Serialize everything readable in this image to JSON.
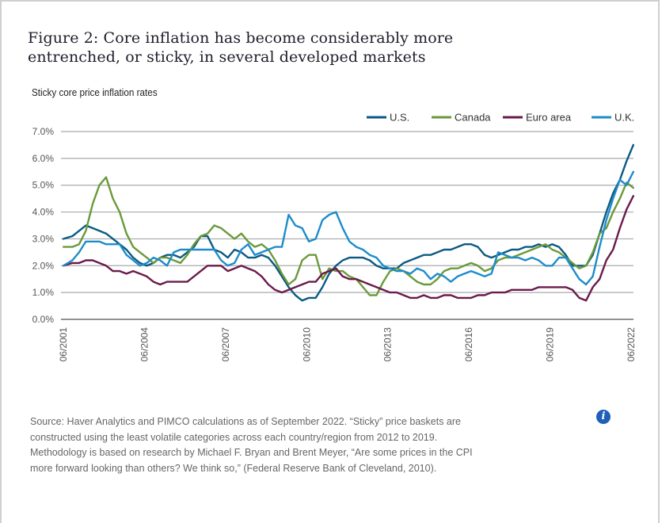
{
  "figure": {
    "title": "Figure 2: Core inflation has become considerably more entrenched, or sticky, in several developed markets",
    "subtitle": "Sticky core price inflation rates",
    "source": "Source: Haver Analytics and PIMCO calculations as of September 2022. “Sticky” price baskets are constructed using the least volatile categories across each country/region from 2012 to 2019. Methodology is based on research by Michael F. Bryan and Brent Meyer, “Are some prices in the CPI more forward looking than others? We think so,” (Federal Reserve Bank of Cleveland, 2010).",
    "info_icon": "info-icon"
  },
  "chart_data": {
    "type": "line",
    "title": "Sticky core price inflation rates",
    "xlabel": "",
    "ylabel": "",
    "ylim": [
      0,
      7
    ],
    "xlim": [
      2001.417,
      2022.5
    ],
    "grid": true,
    "legend_position": "top-right",
    "y_ticks": [
      "0.0%",
      "1.0%",
      "2.0%",
      "3.0%",
      "4.0%",
      "5.0%",
      "6.0%",
      "7.0%"
    ],
    "x_ticks": [
      "06/2001",
      "06/2004",
      "06/2007",
      "06/2010",
      "06/2013",
      "06/2016",
      "06/2019",
      "06/2022"
    ],
    "x_tick_values": [
      2001.417,
      2004.417,
      2007.417,
      2010.417,
      2013.417,
      2016.417,
      2019.417,
      2022.417
    ],
    "series": [
      {
        "name": "U.S.",
        "color": "#0b5a82",
        "x": [
          2001.42,
          2001.75,
          2002.0,
          2002.25,
          2002.5,
          2002.75,
          2003.0,
          2003.25,
          2003.5,
          2003.75,
          2004.0,
          2004.25,
          2004.5,
          2004.75,
          2005.0,
          2005.25,
          2005.5,
          2005.75,
          2006.0,
          2006.25,
          2006.5,
          2006.75,
          2007.0,
          2007.25,
          2007.5,
          2007.75,
          2008.0,
          2008.25,
          2008.5,
          2008.75,
          2009.0,
          2009.25,
          2009.5,
          2009.75,
          2010.0,
          2010.25,
          2010.5,
          2010.75,
          2011.0,
          2011.25,
          2011.5,
          2011.75,
          2012.0,
          2012.25,
          2012.5,
          2012.75,
          2013.0,
          2013.25,
          2013.5,
          2013.75,
          2014.0,
          2014.25,
          2014.5,
          2014.75,
          2015.0,
          2015.25,
          2015.5,
          2015.75,
          2016.0,
          2016.25,
          2016.5,
          2016.75,
          2017.0,
          2017.25,
          2017.5,
          2017.75,
          2018.0,
          2018.25,
          2018.5,
          2018.75,
          2019.0,
          2019.25,
          2019.5,
          2019.75,
          2020.0,
          2020.25,
          2020.5,
          2020.75,
          2021.0,
          2021.25,
          2021.5,
          2021.75,
          2022.0,
          2022.25,
          2022.5
        ],
        "values": [
          3.0,
          3.1,
          3.3,
          3.5,
          3.4,
          3.3,
          3.2,
          3.0,
          2.8,
          2.6,
          2.3,
          2.1,
          2.0,
          2.1,
          2.3,
          2.4,
          2.4,
          2.3,
          2.5,
          2.7,
          3.1,
          3.1,
          2.6,
          2.5,
          2.3,
          2.6,
          2.5,
          2.3,
          2.3,
          2.4,
          2.3,
          2.0,
          1.6,
          1.2,
          0.9,
          0.7,
          0.8,
          0.8,
          1.2,
          1.7,
          2.0,
          2.2,
          2.3,
          2.3,
          2.3,
          2.2,
          2.0,
          1.9,
          1.9,
          1.9,
          2.1,
          2.2,
          2.3,
          2.4,
          2.4,
          2.5,
          2.6,
          2.6,
          2.7,
          2.8,
          2.8,
          2.7,
          2.4,
          2.3,
          2.4,
          2.5,
          2.6,
          2.6,
          2.7,
          2.7,
          2.8,
          2.7,
          2.8,
          2.7,
          2.4,
          2.0,
          2.0,
          2.0,
          2.4,
          3.2,
          4.0,
          4.7,
          5.2,
          5.9,
          6.5
        ]
      },
      {
        "name": "Canada",
        "color": "#6a9a3a",
        "x": [
          2001.42,
          2001.75,
          2002.0,
          2002.25,
          2002.5,
          2002.75,
          2003.0,
          2003.25,
          2003.5,
          2003.75,
          2004.0,
          2004.25,
          2004.5,
          2004.75,
          2005.0,
          2005.25,
          2005.5,
          2005.75,
          2006.0,
          2006.25,
          2006.5,
          2006.75,
          2007.0,
          2007.25,
          2007.5,
          2007.75,
          2008.0,
          2008.25,
          2008.5,
          2008.75,
          2009.0,
          2009.25,
          2009.5,
          2009.75,
          2010.0,
          2010.25,
          2010.5,
          2010.75,
          2011.0,
          2011.25,
          2011.5,
          2011.75,
          2012.0,
          2012.25,
          2012.5,
          2012.75,
          2013.0,
          2013.25,
          2013.5,
          2013.75,
          2014.0,
          2014.25,
          2014.5,
          2014.75,
          2015.0,
          2015.25,
          2015.5,
          2015.75,
          2016.0,
          2016.25,
          2016.5,
          2016.75,
          2017.0,
          2017.25,
          2017.5,
          2017.75,
          2018.0,
          2018.25,
          2018.5,
          2018.75,
          2019.0,
          2019.25,
          2019.5,
          2019.75,
          2020.0,
          2020.25,
          2020.5,
          2020.75,
          2021.0,
          2021.25,
          2021.5,
          2021.75,
          2022.0,
          2022.25,
          2022.5
        ],
        "values": [
          2.7,
          2.7,
          2.8,
          3.3,
          4.3,
          5.0,
          5.3,
          4.5,
          4.0,
          3.2,
          2.7,
          2.5,
          2.3,
          2.1,
          2.3,
          2.3,
          2.2,
          2.1,
          2.4,
          2.8,
          3.1,
          3.2,
          3.5,
          3.4,
          3.2,
          3.0,
          3.2,
          2.9,
          2.7,
          2.8,
          2.6,
          2.2,
          1.7,
          1.3,
          1.5,
          2.2,
          2.4,
          2.4,
          1.5,
          1.9,
          1.8,
          1.8,
          1.6,
          1.5,
          1.2,
          0.9,
          0.9,
          1.4,
          1.8,
          1.9,
          1.8,
          1.6,
          1.4,
          1.3,
          1.3,
          1.5,
          1.8,
          1.9,
          1.9,
          2.0,
          2.1,
          2.0,
          1.8,
          1.9,
          2.2,
          2.3,
          2.3,
          2.4,
          2.5,
          2.6,
          2.7,
          2.8,
          2.6,
          2.5,
          2.3,
          2.1,
          1.9,
          2.0,
          2.5,
          3.2,
          3.4,
          4.0,
          4.5,
          5.1,
          4.9
        ]
      },
      {
        "name": "Euro area",
        "color": "#6b1a4b",
        "x": [
          2001.42,
          2001.75,
          2002.0,
          2002.25,
          2002.5,
          2002.75,
          2003.0,
          2003.25,
          2003.5,
          2003.75,
          2004.0,
          2004.25,
          2004.5,
          2004.75,
          2005.0,
          2005.25,
          2005.5,
          2005.75,
          2006.0,
          2006.25,
          2006.5,
          2006.75,
          2007.0,
          2007.25,
          2007.5,
          2007.75,
          2008.0,
          2008.25,
          2008.5,
          2008.75,
          2009.0,
          2009.25,
          2009.5,
          2009.75,
          2010.0,
          2010.25,
          2010.5,
          2010.75,
          2011.0,
          2011.25,
          2011.5,
          2011.75,
          2012.0,
          2012.25,
          2012.5,
          2012.75,
          2013.0,
          2013.25,
          2013.5,
          2013.75,
          2014.0,
          2014.25,
          2014.5,
          2014.75,
          2015.0,
          2015.25,
          2015.5,
          2015.75,
          2016.0,
          2016.25,
          2016.5,
          2016.75,
          2017.0,
          2017.25,
          2017.5,
          2017.75,
          2018.0,
          2018.25,
          2018.5,
          2018.75,
          2019.0,
          2019.25,
          2019.5,
          2019.75,
          2020.0,
          2020.25,
          2020.5,
          2020.75,
          2021.0,
          2021.25,
          2021.5,
          2021.75,
          2022.0,
          2022.25,
          2022.5
        ],
        "values": [
          2.0,
          2.1,
          2.1,
          2.2,
          2.2,
          2.1,
          2.0,
          1.8,
          1.8,
          1.7,
          1.8,
          1.7,
          1.6,
          1.4,
          1.3,
          1.4,
          1.4,
          1.4,
          1.4,
          1.6,
          1.8,
          2.0,
          2.0,
          2.0,
          1.8,
          1.9,
          2.0,
          1.9,
          1.8,
          1.6,
          1.3,
          1.1,
          1.0,
          1.1,
          1.2,
          1.3,
          1.4,
          1.4,
          1.7,
          1.8,
          1.9,
          1.6,
          1.5,
          1.5,
          1.4,
          1.3,
          1.2,
          1.1,
          1.0,
          1.0,
          0.9,
          0.8,
          0.8,
          0.9,
          0.8,
          0.8,
          0.9,
          0.9,
          0.8,
          0.8,
          0.8,
          0.9,
          0.9,
          1.0,
          1.0,
          1.0,
          1.1,
          1.1,
          1.1,
          1.1,
          1.2,
          1.2,
          1.2,
          1.2,
          1.2,
          1.1,
          0.8,
          0.7,
          1.2,
          1.5,
          2.2,
          2.6,
          3.4,
          4.1,
          4.6
        ]
      },
      {
        "name": "U.K.",
        "color": "#1e8ccb",
        "x": [
          2001.42,
          2001.75,
          2002.0,
          2002.25,
          2002.5,
          2002.75,
          2003.0,
          2003.25,
          2003.5,
          2003.75,
          2004.0,
          2004.25,
          2004.5,
          2004.75,
          2005.0,
          2005.25,
          2005.5,
          2005.75,
          2006.0,
          2006.25,
          2006.5,
          2006.75,
          2007.0,
          2007.25,
          2007.5,
          2007.75,
          2008.0,
          2008.25,
          2008.5,
          2008.75,
          2009.0,
          2009.25,
          2009.5,
          2009.75,
          2010.0,
          2010.25,
          2010.5,
          2010.75,
          2011.0,
          2011.25,
          2011.5,
          2011.75,
          2012.0,
          2012.25,
          2012.5,
          2012.75,
          2013.0,
          2013.25,
          2013.5,
          2013.75,
          2014.0,
          2014.25,
          2014.5,
          2014.75,
          2015.0,
          2015.25,
          2015.5,
          2015.75,
          2016.0,
          2016.25,
          2016.5,
          2016.75,
          2017.0,
          2017.25,
          2017.5,
          2017.75,
          2018.0,
          2018.25,
          2018.5,
          2018.75,
          2019.0,
          2019.25,
          2019.5,
          2019.75,
          2020.0,
          2020.25,
          2020.5,
          2020.75,
          2021.0,
          2021.25,
          2021.5,
          2021.75,
          2022.0,
          2022.25,
          2022.5
        ],
        "values": [
          2.0,
          2.2,
          2.5,
          2.9,
          2.9,
          2.9,
          2.8,
          2.8,
          2.8,
          2.4,
          2.2,
          2.0,
          2.1,
          2.3,
          2.2,
          2.0,
          2.5,
          2.6,
          2.6,
          2.6,
          2.6,
          2.6,
          2.6,
          2.2,
          2.0,
          2.1,
          2.6,
          2.8,
          2.4,
          2.5,
          2.6,
          2.7,
          2.7,
          3.9,
          3.5,
          3.4,
          2.9,
          3.0,
          3.7,
          3.9,
          4.0,
          3.4,
          2.9,
          2.7,
          2.6,
          2.4,
          2.3,
          2.0,
          1.9,
          1.8,
          1.8,
          1.7,
          1.9,
          1.8,
          1.5,
          1.7,
          1.6,
          1.4,
          1.6,
          1.7,
          1.8,
          1.7,
          1.6,
          1.7,
          2.5,
          2.4,
          2.3,
          2.3,
          2.2,
          2.3,
          2.2,
          2.0,
          2.0,
          2.3,
          2.3,
          1.9,
          1.5,
          1.3,
          1.6,
          2.7,
          3.7,
          4.5,
          5.2,
          5.0,
          5.5
        ]
      }
    ]
  }
}
